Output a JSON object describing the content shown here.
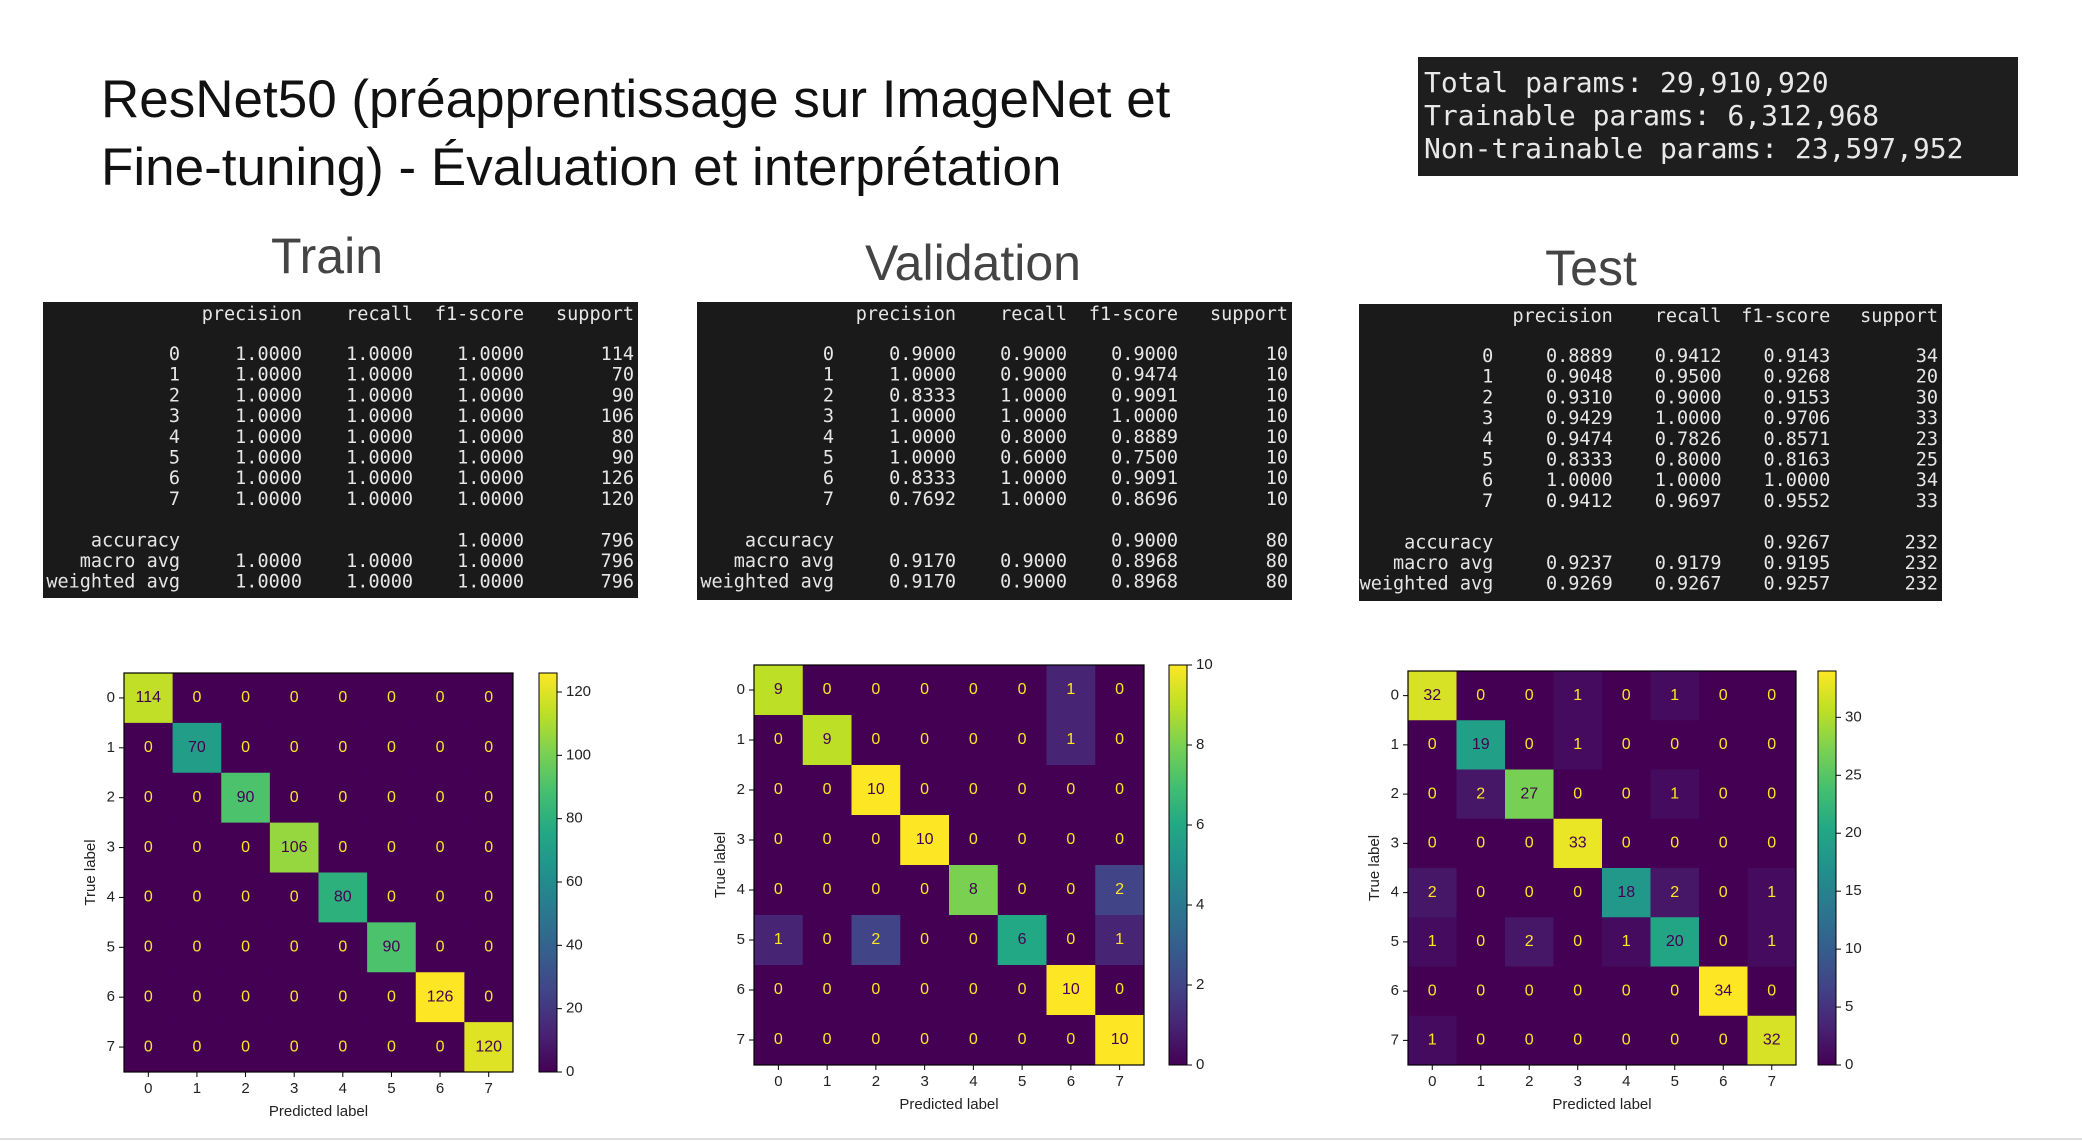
{
  "title": [
    "ResNet50 (préapprentissage sur ImageNet et",
    "Fine-tuning) - Évaluation et interprétation"
  ],
  "params": [
    "Total params: 29,910,920",
    "Trainable params: 6,312,968",
    "Non-trainable params: 23,597,952"
  ],
  "report_columns": [
    "precision",
    "recall",
    "f1-score",
    "support"
  ],
  "matrix_axes": {
    "xlabel": "Predicted label",
    "ylabel": "True label",
    "classes": [
      0,
      1,
      2,
      3,
      4,
      5,
      6,
      7
    ],
    "colormap": "viridis"
  },
  "panels": [
    {
      "heading": "Train",
      "report": {
        "rows": [
          [
            "0",
            "1.0000",
            "1.0000",
            "1.0000",
            "114"
          ],
          [
            "1",
            "1.0000",
            "1.0000",
            "1.0000",
            "70"
          ],
          [
            "2",
            "1.0000",
            "1.0000",
            "1.0000",
            "90"
          ],
          [
            "3",
            "1.0000",
            "1.0000",
            "1.0000",
            "106"
          ],
          [
            "4",
            "1.0000",
            "1.0000",
            "1.0000",
            "80"
          ],
          [
            "5",
            "1.0000",
            "1.0000",
            "1.0000",
            "90"
          ],
          [
            "6",
            "1.0000",
            "1.0000",
            "1.0000",
            "126"
          ],
          [
            "7",
            "1.0000",
            "1.0000",
            "1.0000",
            "120"
          ]
        ],
        "accuracy": {
          "label": "accuracy",
          "f1": "1.0000",
          "support": "796"
        },
        "averages": [
          [
            "macro avg",
            "1.0000",
            "1.0000",
            "1.0000",
            "796"
          ],
          [
            "weighted avg",
            "1.0000",
            "1.0000",
            "1.0000",
            "796"
          ]
        ]
      },
      "matrix": {
        "values": [
          [
            114,
            0,
            0,
            0,
            0,
            0,
            0,
            0
          ],
          [
            0,
            70,
            0,
            0,
            0,
            0,
            0,
            0
          ],
          [
            0,
            0,
            90,
            0,
            0,
            0,
            0,
            0
          ],
          [
            0,
            0,
            0,
            106,
            0,
            0,
            0,
            0
          ],
          [
            0,
            0,
            0,
            0,
            80,
            0,
            0,
            0
          ],
          [
            0,
            0,
            0,
            0,
            0,
            90,
            0,
            0
          ],
          [
            0,
            0,
            0,
            0,
            0,
            0,
            126,
            0
          ],
          [
            0,
            0,
            0,
            0,
            0,
            0,
            0,
            120
          ]
        ],
        "clim": [
          0,
          126
        ],
        "cticks": [
          0,
          20,
          40,
          60,
          80,
          100,
          120
        ]
      }
    },
    {
      "heading": "Validation",
      "report": {
        "rows": [
          [
            "0",
            "0.9000",
            "0.9000",
            "0.9000",
            "10"
          ],
          [
            "1",
            "1.0000",
            "0.9000",
            "0.9474",
            "10"
          ],
          [
            "2",
            "0.8333",
            "1.0000",
            "0.9091",
            "10"
          ],
          [
            "3",
            "1.0000",
            "1.0000",
            "1.0000",
            "10"
          ],
          [
            "4",
            "1.0000",
            "0.8000",
            "0.8889",
            "10"
          ],
          [
            "5",
            "1.0000",
            "0.6000",
            "0.7500",
            "10"
          ],
          [
            "6",
            "0.8333",
            "1.0000",
            "0.9091",
            "10"
          ],
          [
            "7",
            "0.7692",
            "1.0000",
            "0.8696",
            "10"
          ]
        ],
        "accuracy": {
          "label": "accuracy",
          "f1": "0.9000",
          "support": "80"
        },
        "averages": [
          [
            "macro avg",
            "0.9170",
            "0.9000",
            "0.8968",
            "80"
          ],
          [
            "weighted avg",
            "0.9170",
            "0.9000",
            "0.8968",
            "80"
          ]
        ]
      },
      "matrix": {
        "values": [
          [
            9,
            0,
            0,
            0,
            0,
            0,
            1,
            0
          ],
          [
            0,
            9,
            0,
            0,
            0,
            0,
            1,
            0
          ],
          [
            0,
            0,
            10,
            0,
            0,
            0,
            0,
            0
          ],
          [
            0,
            0,
            0,
            10,
            0,
            0,
            0,
            0
          ],
          [
            0,
            0,
            0,
            0,
            8,
            0,
            0,
            2
          ],
          [
            1,
            0,
            2,
            0,
            0,
            6,
            0,
            1
          ],
          [
            0,
            0,
            0,
            0,
            0,
            0,
            10,
            0
          ],
          [
            0,
            0,
            0,
            0,
            0,
            0,
            0,
            10
          ]
        ],
        "clim": [
          0,
          10
        ],
        "cticks": [
          0,
          2,
          4,
          6,
          8,
          10
        ]
      }
    },
    {
      "heading": "Test",
      "report": {
        "rows": [
          [
            "0",
            "0.8889",
            "0.9412",
            "0.9143",
            "34"
          ],
          [
            "1",
            "0.9048",
            "0.9500",
            "0.9268",
            "20"
          ],
          [
            "2",
            "0.9310",
            "0.9000",
            "0.9153",
            "30"
          ],
          [
            "3",
            "0.9429",
            "1.0000",
            "0.9706",
            "33"
          ],
          [
            "4",
            "0.9474",
            "0.7826",
            "0.8571",
            "23"
          ],
          [
            "5",
            "0.8333",
            "0.8000",
            "0.8163",
            "25"
          ],
          [
            "6",
            "1.0000",
            "1.0000",
            "1.0000",
            "34"
          ],
          [
            "7",
            "0.9412",
            "0.9697",
            "0.9552",
            "33"
          ]
        ],
        "accuracy": {
          "label": "accuracy",
          "f1": "0.9267",
          "support": "232"
        },
        "averages": [
          [
            "macro avg",
            "0.9237",
            "0.9179",
            "0.9195",
            "232"
          ],
          [
            "weighted avg",
            "0.9269",
            "0.9267",
            "0.9257",
            "232"
          ]
        ]
      },
      "matrix": {
        "values": [
          [
            32,
            0,
            0,
            1,
            0,
            1,
            0,
            0
          ],
          [
            0,
            19,
            0,
            1,
            0,
            0,
            0,
            0
          ],
          [
            0,
            2,
            27,
            0,
            0,
            1,
            0,
            0
          ],
          [
            0,
            0,
            0,
            33,
            0,
            0,
            0,
            0
          ],
          [
            2,
            0,
            0,
            0,
            18,
            2,
            0,
            1
          ],
          [
            1,
            0,
            2,
            0,
            1,
            20,
            0,
            1
          ],
          [
            0,
            0,
            0,
            0,
            0,
            0,
            34,
            0
          ],
          [
            1,
            0,
            0,
            0,
            0,
            0,
            0,
            32
          ]
        ],
        "clim": [
          0,
          34
        ],
        "cticks": [
          0,
          5,
          10,
          15,
          20,
          25,
          30
        ]
      }
    }
  ]
}
